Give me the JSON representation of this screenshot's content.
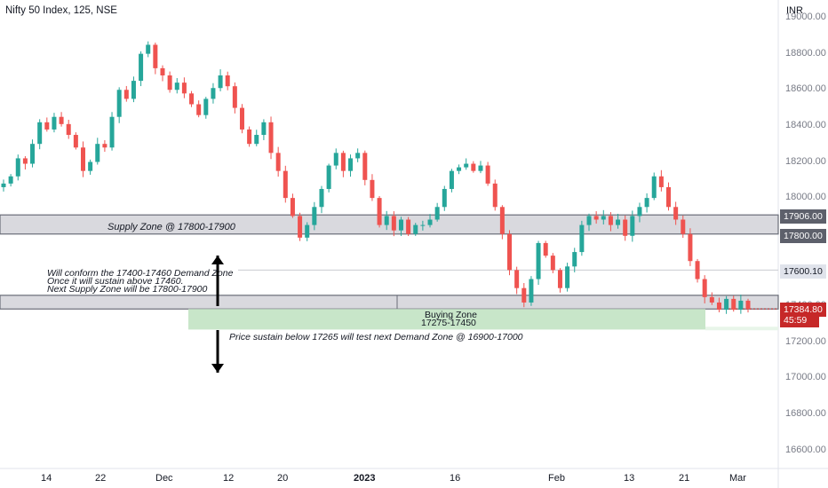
{
  "header": {
    "title": "Nifty 50 Index, 125, NSE",
    "currency": "INR"
  },
  "colors": {
    "up": "#26a69a",
    "down": "#ef5350",
    "zone_fill": "#d9d9de",
    "buy_zone_fill": "#c8e6c9",
    "price_tag": "#c62828"
  },
  "chart_data": {
    "type": "candlestick",
    "ylim": [
      16500,
      19100
    ],
    "y_ticks": [
      "16600.00",
      "16800.00",
      "17000.00",
      "17200.00",
      "17400.00",
      "17600.00",
      "17800.00",
      "18000.00",
      "18200.00",
      "18400.00",
      "18600.00",
      "18800.00",
      "19000.00"
    ],
    "x_ticks": [
      "14",
      "22",
      "Dec",
      "12",
      "20",
      "2023",
      "16",
      "Feb",
      "13",
      "21",
      "Mar"
    ],
    "price_levels": {
      "supply_upper": "17906.00",
      "supply_lower": "17800.00",
      "level_mid": "17600.10",
      "current_price": "17384.80",
      "countdown": "45:59"
    },
    "zones": [
      {
        "name": "supply",
        "from": 17800,
        "to": 17906,
        "label": "Supply Zone @ 17800-17900"
      },
      {
        "name": "demand",
        "from": 17384,
        "to": 17460
      },
      {
        "name": "buying",
        "from": 17270,
        "to": 17384,
        "label_line1": "Buying Zone",
        "label_line2": "17275-17450"
      }
    ],
    "annotations": {
      "note_line1": "Will conform the 17400-17460 Demand Zone",
      "note_line2": "Once it will sustain above 17460.",
      "note_line3": "Next Supply Zone will be 17800-17900",
      "bottom_note": "Price sustain below 17265 will test next Demand Zone @ 16900-17000"
    },
    "close_path": [
      18080,
      18120,
      18220,
      18190,
      18300,
      18420,
      18380,
      18450,
      18410,
      18350,
      18280,
      18150,
      18200,
      18300,
      18280,
      18450,
      18600,
      18550,
      18650,
      18800,
      18850,
      18720,
      18680,
      18600,
      18640,
      18580,
      18520,
      18460,
      18550,
      18610,
      18680,
      18620,
      18500,
      18380,
      18300,
      18350,
      18420,
      18250,
      18150,
      18000,
      17900,
      17780,
      17850,
      17950,
      18050,
      18180,
      18250,
      18150,
      18220,
      18250,
      18100,
      18000,
      17850,
      17900,
      17820,
      17880,
      17800,
      17850,
      17850,
      17880,
      17950,
      18050,
      18150,
      18170,
      18190,
      18150,
      18180,
      18080,
      17950,
      17800,
      17600,
      17500,
      17420,
      17550,
      17750,
      17680,
      17600,
      17500,
      17620,
      17700,
      17850,
      17900,
      17880,
      17900,
      17850,
      17880,
      17790,
      17900,
      17950,
      18000,
      18120,
      18060,
      17950,
      17880,
      17800,
      17650,
      17550,
      17450,
      17420,
      17380,
      17440,
      17380,
      17430,
      17384.8
    ]
  }
}
